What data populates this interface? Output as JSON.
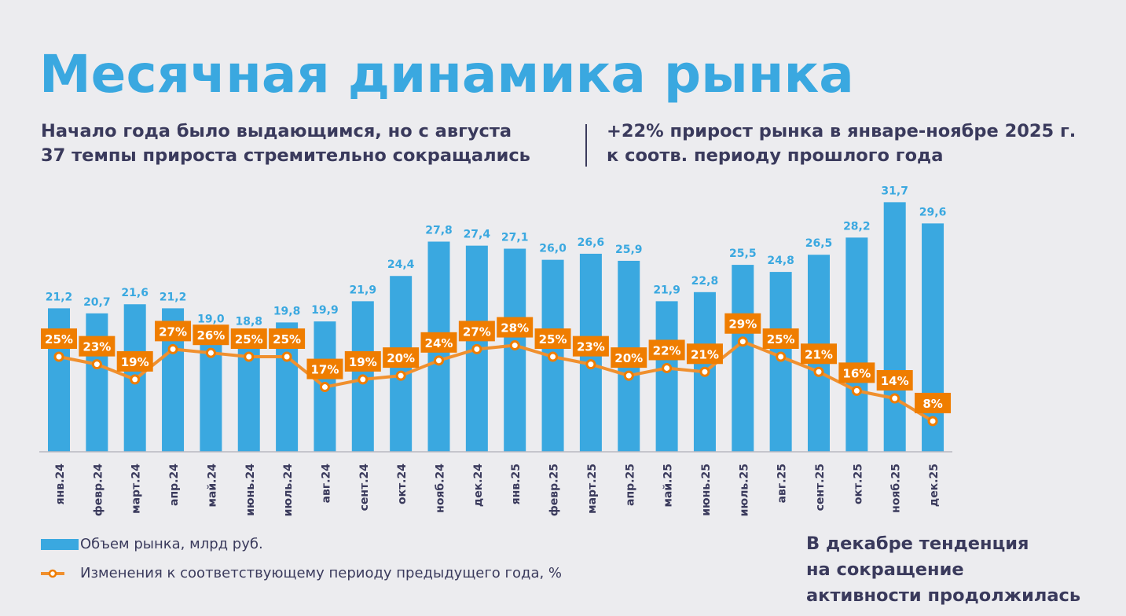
{
  "title": "Месячная динамика рынка",
  "subtitle_left": [
    "Начало года было выдающимся, но с августа",
    "37 темпы прироста стремительно сокращались"
  ],
  "subtitle_right": [
    "+22% прирост рынка в январе-ноябре 2025 г.",
    "к соотв. периоду прошлого года"
  ],
  "note": [
    "В декабре тенденция",
    "на сокращение",
    "активности продолжилась"
  ],
  "colors": {
    "bar": "#3aa8e0",
    "line": "#f0902e",
    "label_bg": "#ef7d00",
    "text": "#3a3a5c"
  },
  "chart_data": {
    "type": "bar+line",
    "categories": [
      "янв.24",
      "февр.24",
      "март.24",
      "апр.24",
      "май.24",
      "июнь.24",
      "июль.24",
      "авг.24",
      "сент.24",
      "окт.24",
      "нояб.24",
      "дек.24",
      "янв.25",
      "февр.25",
      "март.25",
      "апр.25",
      "май.25",
      "июнь.25",
      "июль.25",
      "авг.25",
      "сент.25",
      "окт.25",
      "нояб.25",
      "дек.25"
    ],
    "series": [
      {
        "name": "Объем рынка, млрд руб.",
        "type": "bar",
        "values": [
          21.2,
          20.7,
          21.6,
          21.2,
          19.0,
          18.8,
          19.8,
          19.9,
          21.9,
          24.4,
          27.8,
          27.4,
          27.1,
          26.0,
          26.6,
          25.9,
          21.9,
          22.8,
          25.5,
          24.8,
          26.5,
          28.2,
          31.7,
          29.6
        ],
        "labels": [
          "21,2",
          "20,7",
          "21,6",
          "21,2",
          "19,0",
          "18,8",
          "19,8",
          "19,9",
          "21,9",
          "24,4",
          "27,8",
          "27,4",
          "27,1",
          "26,0",
          "26,6",
          "25,9",
          "21,9",
          "22,8",
          "25,5",
          "24,8",
          "26,5",
          "28,2",
          "31,7",
          "29,6"
        ]
      },
      {
        "name": "Изменения к соответствующему периоду предыдущего года, %",
        "type": "line",
        "values": [
          25,
          23,
          19,
          27,
          26,
          25,
          25,
          17,
          19,
          20,
          24,
          27,
          28,
          25,
          23,
          20,
          22,
          21,
          29,
          25,
          21,
          16,
          14,
          8
        ],
        "labels": [
          "25%",
          "23%",
          "19%",
          "27%",
          "26%",
          "25%",
          "25%",
          "17%",
          "19%",
          "20%",
          "24%",
          "27%",
          "28%",
          "25%",
          "23%",
          "20%",
          "22%",
          "21%",
          "29%",
          "25%",
          "21%",
          "16%",
          "14%",
          "8%"
        ]
      }
    ],
    "legend_position": "bottom-left"
  }
}
